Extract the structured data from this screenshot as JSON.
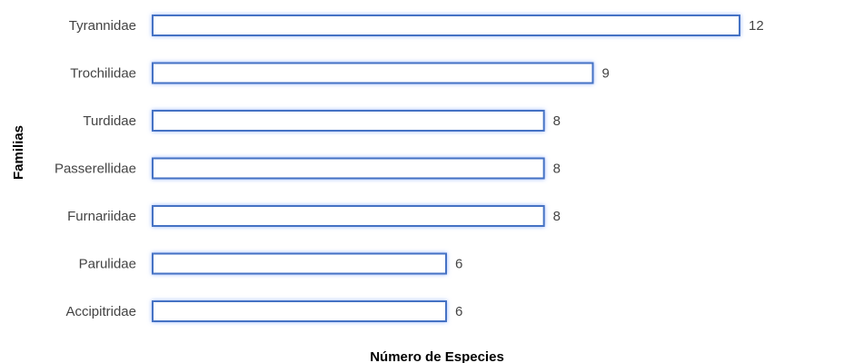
{
  "chart_data": {
    "type": "bar",
    "orientation": "horizontal",
    "categories": [
      "Tyrannidae",
      "Trochilidae",
      "Turdidae",
      "Passerellidae",
      "Furnariidae",
      "Parulidae",
      "Accipitridae"
    ],
    "values": [
      12,
      9,
      8,
      8,
      8,
      6,
      6
    ],
    "xlabel": "Número de Especies",
    "ylabel": "Familias",
    "xlim": [
      0,
      12
    ],
    "grid": false,
    "legend": "none",
    "data_labels": true,
    "colors": {
      "bar_fill": "#ffffff",
      "bar_border": "#4472c4",
      "bar_glow": "#8fb0ff",
      "text": "#444444",
      "axis_title": "#000000"
    }
  }
}
